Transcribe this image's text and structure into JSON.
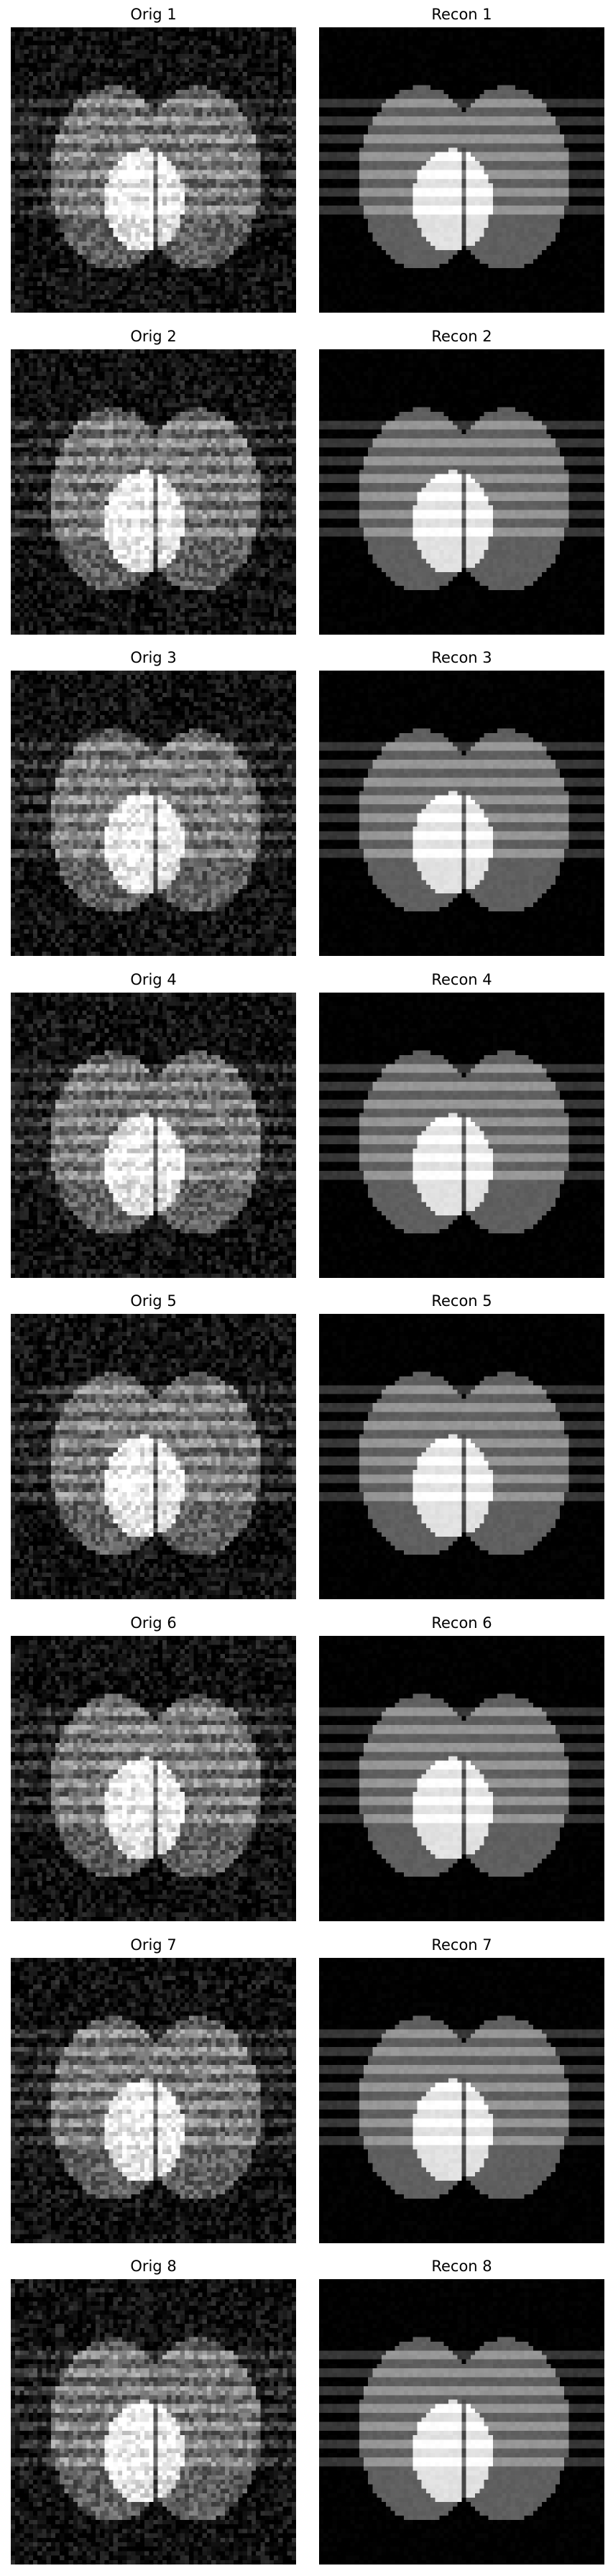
{
  "figure": {
    "background": "#ffffff",
    "panels": [
      {
        "title": "Orig 1",
        "kind": "original"
      },
      {
        "title": "Recon 1",
        "kind": "reconstruction"
      },
      {
        "title": "Orig 2",
        "kind": "original"
      },
      {
        "title": "Recon 2",
        "kind": "reconstruction"
      },
      {
        "title": "Orig 3",
        "kind": "original"
      },
      {
        "title": "Recon 3",
        "kind": "reconstruction"
      },
      {
        "title": "Orig 4",
        "kind": "original"
      },
      {
        "title": "Recon 4",
        "kind": "reconstruction"
      },
      {
        "title": "Orig 5",
        "kind": "original"
      },
      {
        "title": "Recon 5",
        "kind": "reconstruction"
      },
      {
        "title": "Orig 6",
        "kind": "original"
      },
      {
        "title": "Recon 6",
        "kind": "reconstruction"
      },
      {
        "title": "Orig 7",
        "kind": "original"
      },
      {
        "title": "Recon 7",
        "kind": "reconstruction"
      },
      {
        "title": "Orig 8",
        "kind": "original"
      },
      {
        "title": "Recon 8",
        "kind": "reconstruction"
      }
    ]
  }
}
